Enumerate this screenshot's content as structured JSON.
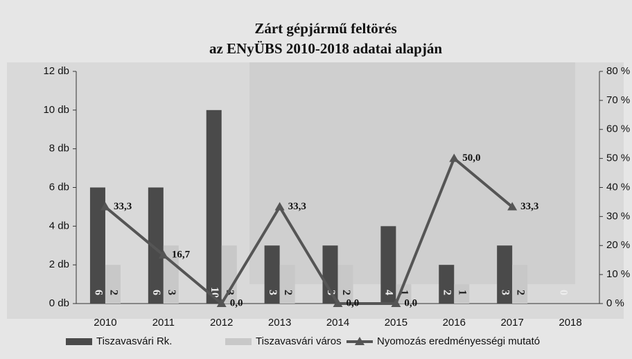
{
  "chart_data": {
    "type": "bar",
    "title": "Zárt gépjármű feltörés",
    "subtitle": "az ENyÜBS 2010-2018 adatai alapján",
    "categories": [
      "2010",
      "2011",
      "2012",
      "2013",
      "2014",
      "2015",
      "2016",
      "2017",
      "2018"
    ],
    "series": [
      {
        "name": "Tiszavasvári Rk.",
        "type": "bar",
        "color": "#4a4a4a",
        "values": [
          6,
          6,
          10,
          3,
          3,
          4,
          2,
          3,
          0
        ]
      },
      {
        "name": "Tiszavasvári város",
        "type": "bar",
        "color": "#c8c8c8",
        "values": [
          2,
          3,
          3,
          2,
          2,
          1,
          1,
          2,
          null
        ]
      },
      {
        "name": "Nyomozás eredményességi mutató",
        "type": "line",
        "axis": "y2",
        "color": "#555555",
        "values": [
          33.3,
          16.7,
          0,
          33.3,
          0,
          0,
          50,
          33.3,
          null
        ],
        "value_labels": [
          "33,3",
          "16,7",
          "0,0",
          "33,3",
          "0,0",
          "0,0",
          "50,0",
          "33,3",
          null
        ]
      }
    ],
    "ylim": [
      0,
      12
    ],
    "yticks": [
      {
        "value": 0,
        "label": "0 db"
      },
      {
        "value": 2,
        "label": "2 db"
      },
      {
        "value": 4,
        "label": "4 db"
      },
      {
        "value": 6,
        "label": "6 db"
      },
      {
        "value": 8,
        "label": "8 db"
      },
      {
        "value": 10,
        "label": "10 db"
      },
      {
        "value": 12,
        "label": "12 db"
      }
    ],
    "y2lim": [
      0,
      80
    ],
    "y2ticks": [
      {
        "value": 0,
        "label": "0 %"
      },
      {
        "value": 10,
        "label": "10 %"
      },
      {
        "value": 20,
        "label": "20 %"
      },
      {
        "value": 30,
        "label": "30 %"
      },
      {
        "value": 40,
        "label": "40 %"
      },
      {
        "value": 50,
        "label": "50 %"
      },
      {
        "value": 60,
        "label": "60 %"
      },
      {
        "value": 70,
        "label": "70 %"
      },
      {
        "value": 80,
        "label": "80 %"
      }
    ],
    "legend": "bottom"
  }
}
